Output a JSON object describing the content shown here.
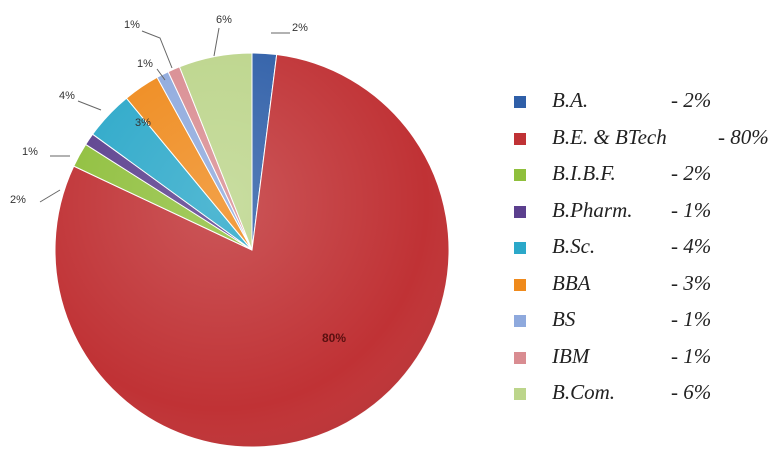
{
  "chart_data": {
    "type": "pie",
    "title": "",
    "slices": [
      {
        "label": "B.A.",
        "value": 2,
        "data_label": "2%",
        "legend_pct": "- 2%",
        "color": "#2f5fa8"
      },
      {
        "label": "B.E. & BTech",
        "value": 80,
        "data_label": "80%",
        "legend_pct": "- 80%",
        "color": "#c03235"
      },
      {
        "label": "B.I.B.F.",
        "value": 2,
        "data_label": "2%",
        "legend_pct": "- 2%",
        "color": "#8fbf3c"
      },
      {
        "label": "B.Pharm.",
        "value": 1,
        "data_label": "1%",
        "legend_pct": "- 1%",
        "color": "#5b3f8e"
      },
      {
        "label": "B.Sc.",
        "value": 4,
        "data_label": "4%",
        "legend_pct": "- 4%",
        "color": "#2ba8c9"
      },
      {
        "label": "BBA",
        "value": 3,
        "data_label": "3%",
        "legend_pct": "- 3%",
        "color": "#ef8a1c"
      },
      {
        "label": "BS",
        "value": 1,
        "data_label": "1%",
        "legend_pct": "- 1%",
        "color": "#8ea9dd"
      },
      {
        "label": "IBM",
        "value": 1,
        "data_label": "1%",
        "legend_pct": "- 1%",
        "color": "#d98c91"
      },
      {
        "label": "B.Com.",
        "value": 6,
        "data_label": "6%",
        "legend_pct": "- 6%",
        "color": "#bcd58b"
      }
    ],
    "start_angle_deg": 0,
    "direction": "clockwise",
    "legend_position": "right"
  }
}
